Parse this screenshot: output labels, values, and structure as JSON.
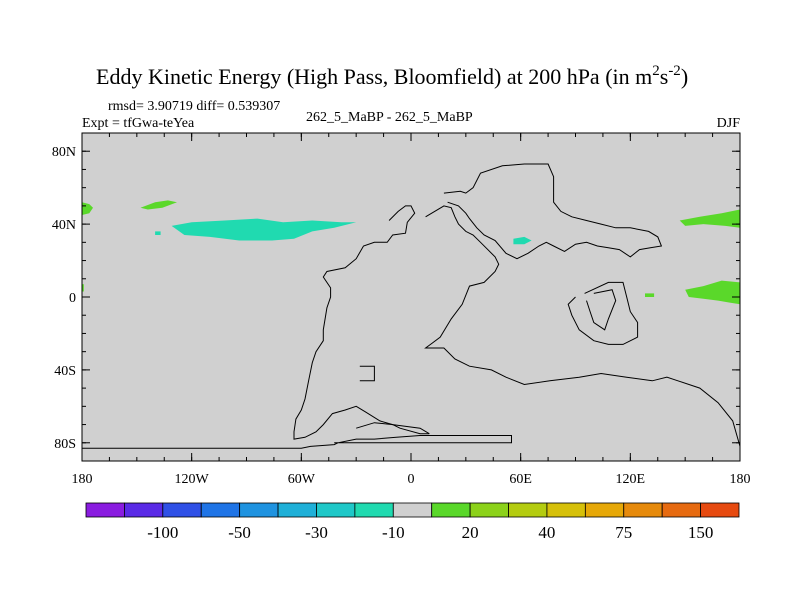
{
  "chart_data": {
    "type": "contour-map",
    "title": "Eddy Kinetic Energy (High Pass, Bloomfield) at 200 hPa (in m",
    "title_units": {
      "sup1": "2",
      "mid": "s",
      "sup2": "-2",
      "close": ")"
    },
    "stats_label": "rmsd= 3.90719 diff= 0.539307",
    "expt_label": "Expt = tfGwa-teYea",
    "center_label": "262_5_MaBP - 262_5_MaBP",
    "season_label": "DJF",
    "x_range": [
      -180,
      180
    ],
    "y_range": [
      -90,
      90
    ],
    "x_ticks": [
      {
        "value": -180,
        "label": "180"
      },
      {
        "value": -120,
        "label": "120W"
      },
      {
        "value": -60,
        "label": "60W"
      },
      {
        "value": 0,
        "label": "0"
      },
      {
        "value": 60,
        "label": "60E"
      },
      {
        "value": 120,
        "label": "120E"
      },
      {
        "value": 180,
        "label": "180"
      }
    ],
    "y_ticks": [
      {
        "value": 80,
        "label": "80N"
      },
      {
        "value": 40,
        "label": "40N"
      },
      {
        "value": 0,
        "label": "0"
      },
      {
        "value": -40,
        "label": "40S"
      },
      {
        "value": -80,
        "label": "80S"
      }
    ],
    "background_color": "#d0d0d0",
    "colorbar": {
      "colors": [
        "#8a1ce0",
        "#5a2ae6",
        "#2f50e6",
        "#1f74e6",
        "#1f93e0",
        "#1fb0d8",
        "#1fc8c8",
        "#20dab0",
        "#d0d0d0",
        "#5ad82a",
        "#8cd21a",
        "#b4cc10",
        "#d6c00a",
        "#e6a808",
        "#e68a0c",
        "#e66a10",
        "#e64a10"
      ],
      "labels": [
        {
          "after_index": 1,
          "text": "-100"
        },
        {
          "after_index": 3,
          "text": "-50"
        },
        {
          "after_index": 5,
          "text": "-30"
        },
        {
          "after_index": 7,
          "text": "-10"
        },
        {
          "after_index": 9,
          "text": "20"
        },
        {
          "after_index": 11,
          "text": "40"
        },
        {
          "after_index": 13,
          "text": "75"
        },
        {
          "after_index": 15,
          "text": "150"
        }
      ]
    },
    "filled_regions": [
      {
        "name": "green-west-edge",
        "color": "#5ad82a",
        "points": [
          [
            -180,
            52
          ],
          [
            -176,
            51
          ],
          [
            -174,
            49
          ],
          [
            -176,
            46
          ],
          [
            -180,
            45
          ]
        ]
      },
      {
        "name": "green-n-pacific",
        "color": "#5ad82a",
        "points": [
          [
            -148,
            49
          ],
          [
            -140,
            52
          ],
          [
            -133,
            53
          ],
          [
            -128,
            52
          ],
          [
            -136,
            49
          ],
          [
            -144,
            48
          ]
        ]
      },
      {
        "name": "cyan-pacific-tongue",
        "color": "#20dab0",
        "points": [
          [
            -131,
            39
          ],
          [
            -120,
            41
          ],
          [
            -102,
            42
          ],
          [
            -84,
            43
          ],
          [
            -70,
            41
          ],
          [
            -54,
            42
          ],
          [
            -38,
            41
          ],
          [
            -30,
            41
          ],
          [
            -42,
            38
          ],
          [
            -54,
            36
          ],
          [
            -64,
            32
          ],
          [
            -76,
            31
          ],
          [
            -94,
            31
          ],
          [
            -110,
            33
          ],
          [
            -124,
            34
          ]
        ]
      },
      {
        "name": "cyan-small",
        "color": "#20dab0",
        "points": [
          [
            -140,
            36
          ],
          [
            -137,
            36
          ],
          [
            -137,
            34
          ],
          [
            -140,
            34
          ]
        ]
      },
      {
        "name": "cyan-asia",
        "color": "#20dab0",
        "points": [
          [
            56,
            32
          ],
          [
            62,
            33
          ],
          [
            66,
            31
          ],
          [
            62,
            29
          ],
          [
            56,
            29
          ]
        ]
      },
      {
        "name": "green-nw-pacific",
        "color": "#5ad82a",
        "points": [
          [
            147,
            42
          ],
          [
            158,
            44
          ],
          [
            170,
            46
          ],
          [
            180,
            48
          ],
          [
            180,
            38
          ],
          [
            172,
            39
          ],
          [
            160,
            40
          ],
          [
            150,
            39
          ]
        ]
      },
      {
        "name": "green-tropical",
        "color": "#5ad82a",
        "points": [
          [
            150,
            4
          ],
          [
            160,
            6
          ],
          [
            170,
            9
          ],
          [
            180,
            8
          ],
          [
            180,
            -4
          ],
          [
            174,
            -3
          ],
          [
            168,
            -2
          ],
          [
            160,
            -1
          ],
          [
            152,
            0
          ]
        ]
      },
      {
        "name": "green-west-tropical",
        "color": "#5ad82a",
        "points": [
          [
            -180,
            7
          ],
          [
            -179,
            7
          ],
          [
            -179,
            3
          ],
          [
            -180,
            3
          ]
        ]
      },
      {
        "name": "green-speck",
        "color": "#5ad82a",
        "points": [
          [
            128,
            2
          ],
          [
            133,
            2
          ],
          [
            133,
            0
          ],
          [
            128,
            0
          ]
        ]
      }
    ],
    "contour_lines": [
      {
        "name": "outline-main-west",
        "points": [
          [
            -180,
            -83
          ],
          [
            -60,
            -83
          ],
          [
            -55,
            -82
          ],
          [
            -42,
            -81
          ],
          [
            -40,
            -80
          ],
          [
            -30,
            -78
          ],
          [
            -20,
            -78
          ],
          [
            -8,
            -77
          ],
          [
            5,
            -76
          ],
          [
            35,
            -76
          ],
          [
            50,
            -76
          ],
          [
            55,
            -76
          ],
          [
            55,
            -80
          ],
          [
            -42,
            -80
          ]
        ]
      },
      {
        "name": "outline-africa-like",
        "points": [
          [
            -12,
            42
          ],
          [
            -7,
            47
          ],
          [
            -3,
            50
          ],
          [
            0,
            50
          ],
          [
            2,
            46
          ],
          [
            -2,
            41
          ],
          [
            -3,
            35
          ],
          [
            -10,
            34
          ],
          [
            -13,
            30
          ],
          [
            -20,
            30
          ],
          [
            -26,
            28
          ],
          [
            -30,
            21
          ],
          [
            -36,
            16
          ],
          [
            -46,
            14
          ],
          [
            -48,
            11
          ],
          [
            -44,
            5
          ],
          [
            -44,
            0
          ],
          [
            -46,
            -6
          ],
          [
            -48,
            -18
          ],
          [
            -48,
            -24
          ],
          [
            -52,
            -30
          ],
          [
            -54,
            -36
          ],
          [
            -56,
            -46
          ],
          [
            -58,
            -56
          ],
          [
            -60,
            -62
          ],
          [
            -63,
            -67
          ],
          [
            -64,
            -74
          ],
          [
            -64,
            -78
          ],
          [
            -58,
            -77
          ],
          [
            -52,
            -74
          ],
          [
            -48,
            -70
          ],
          [
            -43,
            -64
          ],
          [
            -36,
            -62
          ],
          [
            -30,
            -60
          ],
          [
            -25,
            -63
          ],
          [
            -17,
            -68
          ],
          [
            -10,
            -70
          ],
          [
            -6,
            -72
          ],
          [
            5,
            -75
          ],
          [
            10,
            -75
          ]
        ]
      },
      {
        "name": "outline-n-continent",
        "points": [
          [
            18,
            57
          ],
          [
            27,
            58
          ],
          [
            30,
            57
          ],
          [
            34,
            60
          ],
          [
            38,
            68
          ],
          [
            50,
            72
          ],
          [
            62,
            73
          ],
          [
            75,
            73
          ],
          [
            78,
            66
          ],
          [
            78,
            52
          ],
          [
            82,
            47
          ],
          [
            88,
            44
          ],
          [
            96,
            42
          ],
          [
            104,
            40
          ],
          [
            112,
            38
          ],
          [
            120,
            38
          ],
          [
            130,
            36
          ],
          [
            135,
            33
          ],
          [
            137,
            28
          ],
          [
            131,
            27
          ],
          [
            125,
            26
          ],
          [
            120,
            22
          ],
          [
            114,
            26
          ],
          [
            108,
            27
          ],
          [
            102,
            28
          ],
          [
            96,
            30
          ],
          [
            90,
            29
          ],
          [
            84,
            25
          ],
          [
            78,
            28
          ],
          [
            74,
            30
          ],
          [
            70,
            28
          ],
          [
            64,
            24
          ],
          [
            58,
            21
          ],
          [
            52,
            24
          ],
          [
            46,
            31
          ],
          [
            40,
            34
          ],
          [
            36,
            38
          ],
          [
            32,
            43
          ],
          [
            30,
            46
          ],
          [
            26,
            50
          ],
          [
            20,
            52
          ]
        ]
      },
      {
        "name": "outline-east-land",
        "points": [
          [
            8,
            44
          ],
          [
            18,
            50
          ],
          [
            22,
            49
          ],
          [
            24,
            44
          ],
          [
            26,
            40
          ],
          [
            30,
            36
          ],
          [
            34,
            34
          ],
          [
            38,
            30
          ],
          [
            46,
            22
          ],
          [
            48,
            18
          ],
          [
            46,
            14
          ],
          [
            40,
            8
          ],
          [
            32,
            6
          ],
          [
            28,
            -4
          ],
          [
            22,
            -12
          ],
          [
            16,
            -22
          ],
          [
            12,
            -25
          ],
          [
            8,
            -28
          ],
          [
            18,
            -28
          ],
          [
            24,
            -34
          ],
          [
            32,
            -38
          ],
          [
            44,
            -40
          ],
          [
            52,
            -44
          ],
          [
            62,
            -48
          ],
          [
            76,
            -46
          ],
          [
            92,
            -44
          ],
          [
            104,
            -42
          ],
          [
            118,
            -44
          ],
          [
            132,
            -46
          ],
          [
            140,
            -44
          ],
          [
            146,
            -46
          ],
          [
            158,
            -50
          ],
          [
            168,
            -58
          ],
          [
            176,
            -68
          ],
          [
            180,
            -82
          ]
        ]
      },
      {
        "name": "outline-island",
        "points": [
          [
            95,
            2
          ],
          [
            108,
            8
          ],
          [
            116,
            8
          ],
          [
            118,
            0
          ],
          [
            120,
            -8
          ],
          [
            124,
            -14
          ],
          [
            124,
            -22
          ],
          [
            116,
            -26
          ],
          [
            108,
            -26
          ],
          [
            100,
            -24
          ],
          [
            92,
            -18
          ],
          [
            88,
            -10
          ],
          [
            86,
            -4
          ],
          [
            90,
            0
          ]
        ]
      },
      {
        "name": "outline-island-inner",
        "points": [
          [
            100,
            2
          ],
          [
            110,
            4
          ],
          [
            112,
            -2
          ],
          [
            108,
            -12
          ],
          [
            106,
            -18
          ],
          [
            100,
            -14
          ],
          [
            98,
            -8
          ],
          [
            96,
            -2
          ]
        ]
      },
      {
        "name": "outline-small-sq",
        "points": [
          [
            -28,
            -38
          ],
          [
            -20,
            -38
          ],
          [
            -20,
            -46
          ],
          [
            -28,
            -46
          ]
        ]
      },
      {
        "name": "outline-top-stub",
        "points": [
          [
            -30,
            -72
          ],
          [
            -20,
            -69
          ],
          [
            -10,
            -70
          ],
          [
            5,
            -72
          ],
          [
            10,
            -75
          ]
        ]
      }
    ]
  }
}
